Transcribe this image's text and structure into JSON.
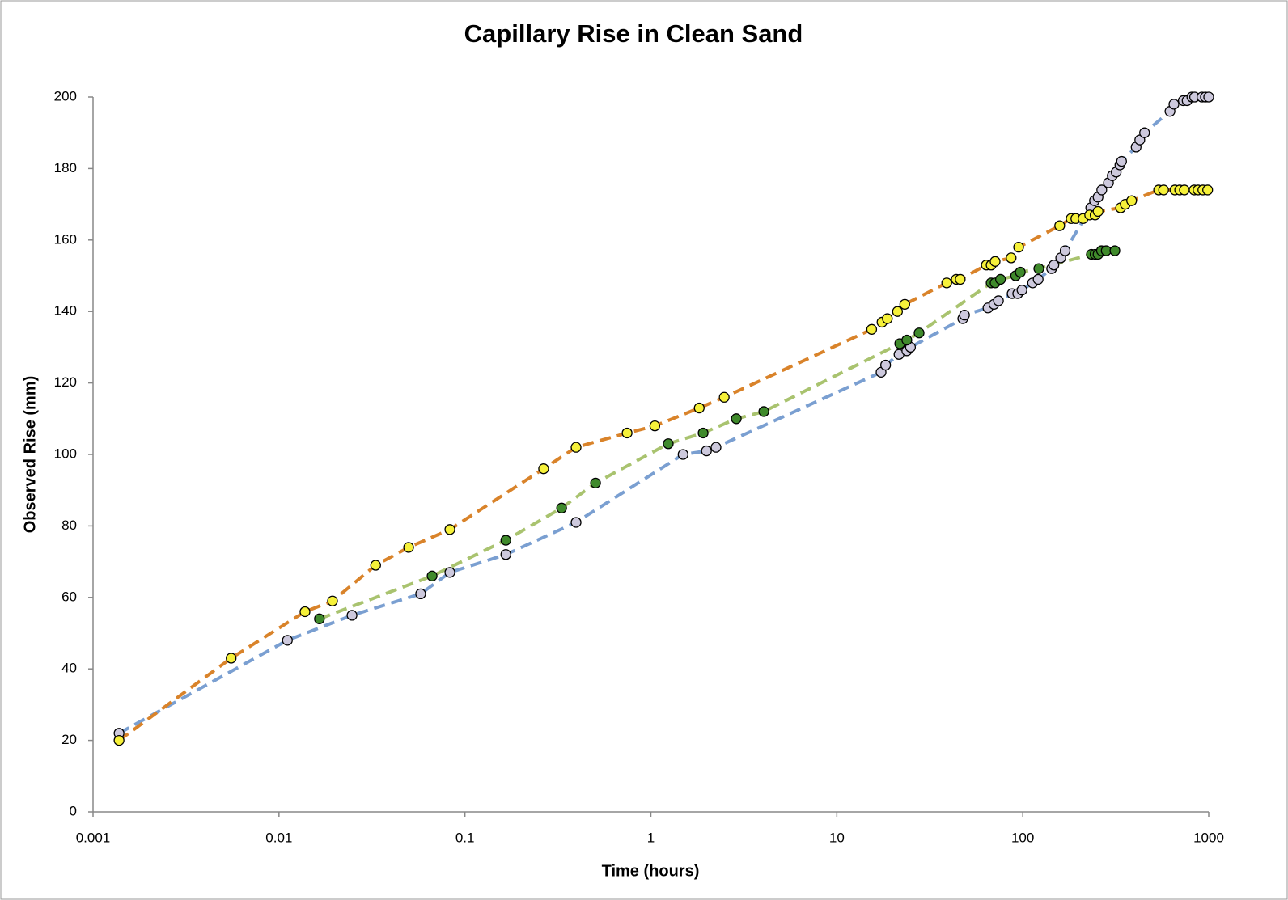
{
  "chart_data": {
    "type": "line",
    "title": "Capillary Rise in Clean Sand",
    "x_label": "Time (hours)",
    "y_label": "Observed Rise (mm)",
    "xscale": "log",
    "grid": false,
    "xlim": [
      0.001,
      1000
    ],
    "xticks": [
      0.001,
      0.01,
      0.1,
      1,
      10,
      100,
      1000
    ],
    "ylim": [
      0,
      200
    ],
    "yticks": [
      0,
      20,
      40,
      60,
      80,
      100,
      120,
      140,
      160,
      180,
      200
    ],
    "series": [
      {
        "color": "#7a9fd1",
        "marker_color": "#cdc9dd",
        "x": [
          0.00138,
          0.0111,
          0.0247,
          0.0578,
          0.083,
          0.166,
          0.396,
          1.49,
          1.99,
          2.24,
          17.3,
          18.3,
          21.6,
          23.8,
          24.9,
          47.6,
          48.6,
          65,
          70,
          74,
          87.7,
          94,
          99,
          113,
          121,
          143,
          147,
          160,
          169,
          232,
          243,
          254,
          266,
          289,
          303,
          318,
          333,
          340,
          407,
          426,
          452,
          619,
          650,
          730,
          765,
          812,
          840,
          920,
          960,
          1000
        ],
        "values": [
          22,
          48,
          55,
          61,
          67,
          72,
          81,
          100,
          101,
          102,
          123,
          125,
          128,
          129,
          130,
          138,
          139,
          141,
          142,
          143,
          145,
          145,
          146,
          148,
          149,
          152,
          153,
          155,
          157,
          169,
          171,
          172,
          174,
          176,
          178,
          179,
          181,
          182,
          186,
          188,
          190,
          196,
          198,
          199,
          199,
          200,
          200,
          200,
          200,
          200
        ]
      },
      {
        "color": "#d9832a",
        "marker_color": "#f6f13a",
        "x": [
          0.00138,
          0.00553,
          0.0138,
          0.0194,
          0.0331,
          0.0498,
          0.083,
          0.265,
          0.396,
          0.745,
          1.05,
          1.82,
          2.48,
          15.4,
          17.5,
          18.7,
          21.2,
          23.2,
          39,
          43.9,
          46.1,
          63.7,
          67.6,
          71,
          86.6,
          95,
          158,
          182,
          193,
          211,
          229,
          245,
          254,
          336,
          356,
          385,
          538,
          572,
          658,
          698,
          740,
          835,
          876,
          930,
          987
        ],
        "values": [
          20,
          43,
          56,
          59,
          69,
          74,
          79,
          96,
          102,
          106,
          108,
          113,
          116,
          135,
          137,
          138,
          140,
          142,
          148,
          149,
          149,
          153,
          153,
          154,
          155,
          158,
          164,
          166,
          166,
          166,
          167,
          167,
          168,
          169,
          170,
          171,
          174,
          174,
          174,
          174,
          174,
          174,
          174,
          174,
          174
        ]
      },
      {
        "color": "#a9c36f",
        "marker_color": "#3f8a2b",
        "x": [
          0.0165,
          0.0666,
          0.166,
          0.331,
          0.504,
          1.24,
          1.91,
          2.88,
          4.05,
          21.8,
          23.8,
          27.7,
          67.6,
          71,
          75.9,
          91.6,
          97,
          122,
          234,
          245,
          254,
          265,
          281,
          313
        ],
        "values": [
          54,
          66,
          76,
          85,
          92,
          103,
          106,
          110,
          112,
          131,
          132,
          134,
          148,
          148,
          149,
          150,
          151,
          152,
          156,
          156,
          156,
          157,
          157,
          157
        ]
      }
    ]
  }
}
